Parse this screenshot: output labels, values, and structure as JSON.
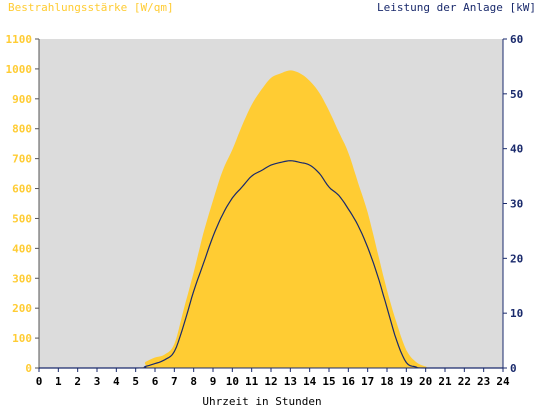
{
  "chart_data": {
    "type": "area",
    "title": "",
    "xlabel": "Uhrzeit in Stunden",
    "left_axis": {
      "label": "Bestrahlungsstärke [W/qm]",
      "range": [
        0,
        1100
      ],
      "ticks": [
        0,
        100,
        200,
        300,
        400,
        500,
        600,
        700,
        800,
        900,
        1000,
        1100
      ],
      "color": "#ffcc33"
    },
    "right_axis": {
      "label": "Leistung der Anlage [kW]",
      "range": [
        0,
        60
      ],
      "ticks": [
        0,
        10,
        20,
        30,
        40,
        50,
        60
      ],
      "color": "#1a2a6c"
    },
    "x_range": [
      0,
      24
    ],
    "x_ticks": [
      0,
      1,
      2,
      3,
      4,
      5,
      6,
      7,
      8,
      9,
      10,
      11,
      12,
      13,
      14,
      15,
      16,
      17,
      18,
      19,
      20,
      21,
      22,
      23,
      24
    ],
    "plot_background": "#dcdcdc",
    "grid": false,
    "series": [
      {
        "axis": "left",
        "kind": "area",
        "color": "#ffcc33",
        "x": [
          0,
          5,
          5.5,
          6,
          6.5,
          7,
          7.5,
          8,
          8.5,
          9,
          9.5,
          10,
          10.5,
          11,
          11.5,
          12,
          12.5,
          13,
          13.5,
          14,
          14.5,
          15,
          15.5,
          16,
          16.5,
          17,
          17.5,
          18,
          18.5,
          19,
          19.5,
          20,
          20.5,
          24
        ],
        "values": [
          0,
          0,
          20,
          35,
          45,
          80,
          200,
          320,
          450,
          560,
          660,
          730,
          810,
          880,
          930,
          970,
          985,
          995,
          985,
          960,
          920,
          860,
          790,
          720,
          620,
          520,
          390,
          260,
          150,
          60,
          20,
          5,
          0,
          0
        ]
      },
      {
        "axis": "right",
        "kind": "line",
        "color": "#1a2a6c",
        "x": [
          0,
          5,
          5.5,
          6,
          6.5,
          7,
          7.5,
          8,
          8.5,
          9,
          9.5,
          10,
          10.5,
          11,
          11.5,
          12,
          12.5,
          13,
          13.5,
          14,
          14.5,
          15,
          15.5,
          16,
          16.5,
          17,
          17.5,
          18,
          18.5,
          19,
          19.5,
          20,
          24
        ],
        "values": [
          0,
          0,
          0.3,
          0.8,
          1.5,
          3,
          8,
          14,
          19,
          24,
          28,
          31,
          33,
          35,
          36,
          37,
          37.5,
          37.8,
          37.5,
          37,
          35.5,
          33,
          31.5,
          29,
          26,
          22,
          17,
          11,
          5,
          1,
          0.2,
          0,
          0
        ]
      }
    ]
  }
}
